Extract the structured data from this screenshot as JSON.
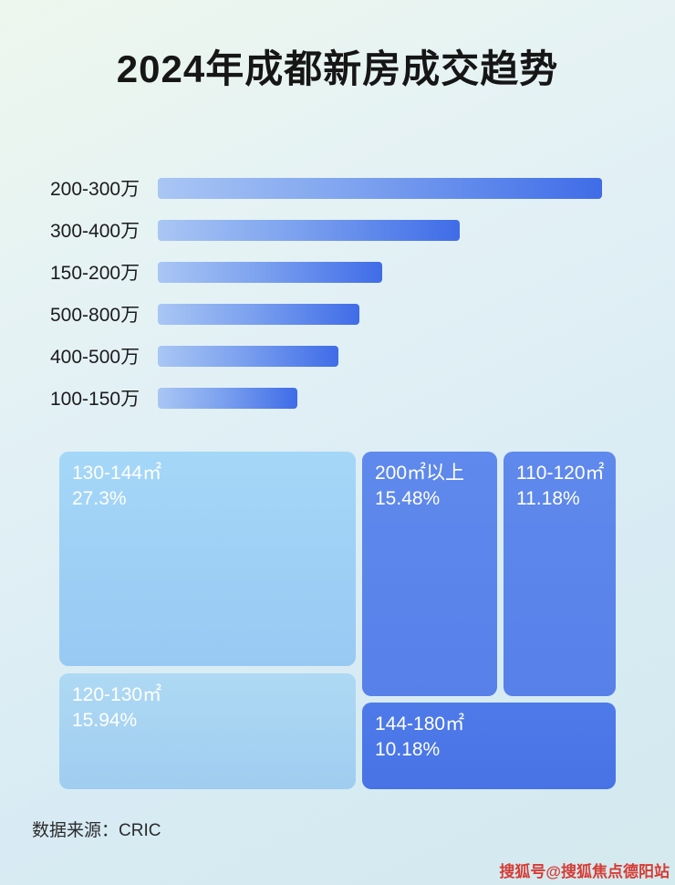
{
  "title": "2024年成都新房成交趋势",
  "footer": {
    "source_label": "数据来源：CRIC"
  },
  "watermark": "搜狐号@搜狐焦点德阳站",
  "colors": {
    "bar_gradient_start": "#a9c6f4",
    "bar_gradient_end": "#3f6ce8",
    "treemap_light_blue": "#9ed2f6",
    "treemap_medium_blue": "#5b85ea",
    "treemap_dark_blue": "#4a78e8",
    "watermark_red": "#d63c35"
  },
  "chart_data": [
    {
      "type": "bar",
      "orientation": "horizontal",
      "title": "2024年成都新房成交趋势",
      "categories": [
        "200-300万",
        "300-400万",
        "150-200万",
        "500-800万",
        "400-500万",
        "100-150万"
      ],
      "values": [
        100,
        68,
        50.5,
        45.4,
        40.6,
        31.5
      ],
      "value_note": "no numeric axis shown; values are relative bar lengths, longest bar = 100",
      "xlabel": "",
      "ylabel": "",
      "grid": false,
      "legend": false,
      "value_labels_shown": false
    },
    {
      "type": "treemap",
      "title": "",
      "items": [
        {
          "label": "130-144㎡",
          "percent": "27.3%",
          "value": 27.3
        },
        {
          "label": "120-130㎡",
          "percent": "15.94%",
          "value": 15.94
        },
        {
          "label": "200㎡以上",
          "percent": "15.48%",
          "value": 15.48
        },
        {
          "label": "110-120㎡",
          "percent": "11.18%",
          "value": 11.18
        },
        {
          "label": "144-180㎡",
          "percent": "10.18%",
          "value": 10.18
        }
      ]
    }
  ]
}
